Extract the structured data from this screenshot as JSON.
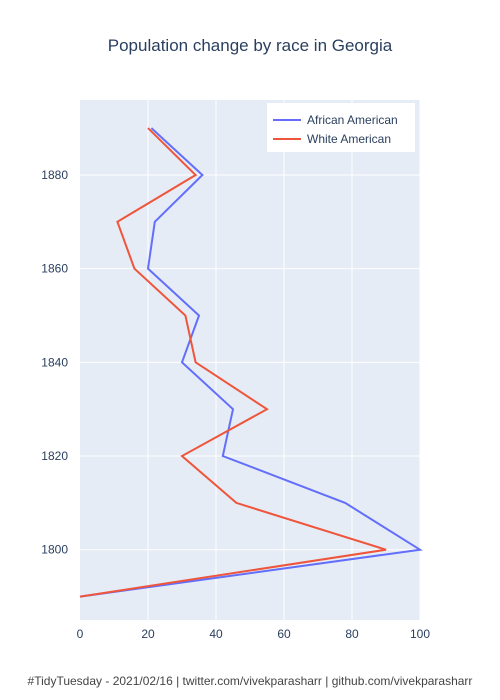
{
  "colors": {
    "plot_bg": "#E5ECF6",
    "grid": "#ffffff",
    "african_american": "#636EFA",
    "white_american": "#EF553B"
  },
  "footer": "#TidyTuesday - 2021/02/16 | twitter.com/vivekparasharr | github.com/vivekparasharr",
  "chart_data": {
    "type": "line",
    "title": "Population change by race in Georgia",
    "xlabel": "",
    "ylabel": "",
    "xlim": [
      0,
      100
    ],
    "ylim": [
      1785,
      1896
    ],
    "x_ticks": [
      0,
      20,
      40,
      60,
      80,
      100
    ],
    "y_ticks": [
      1800,
      1820,
      1840,
      1860,
      1880
    ],
    "grid": true,
    "legend": "top-right",
    "series": [
      {
        "name": "African American",
        "color": "#636EFA",
        "points": [
          [
            0,
            1790
          ],
          [
            100,
            1800
          ],
          [
            78,
            1810
          ],
          [
            42,
            1820
          ],
          [
            45,
            1830
          ],
          [
            30,
            1840
          ],
          [
            35,
            1850
          ],
          [
            20,
            1860
          ],
          [
            22,
            1870
          ],
          [
            36,
            1880
          ],
          [
            21,
            1890
          ]
        ]
      },
      {
        "name": "White American",
        "color": "#EF553B",
        "points": [
          [
            0,
            1790
          ],
          [
            90,
            1800
          ],
          [
            46,
            1810
          ],
          [
            30,
            1820
          ],
          [
            55,
            1830
          ],
          [
            34,
            1840
          ],
          [
            31,
            1850
          ],
          [
            16,
            1860
          ],
          [
            11,
            1870
          ],
          [
            34,
            1880
          ],
          [
            20,
            1890
          ]
        ]
      }
    ]
  }
}
